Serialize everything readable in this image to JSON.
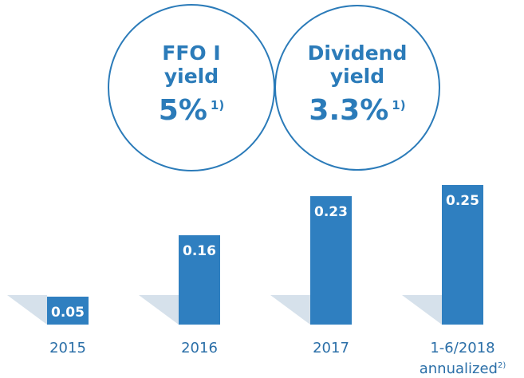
{
  "chart_data": {
    "type": "bar",
    "categories": [
      "2015",
      "2016",
      "2017",
      "1-6/2018 annualized"
    ],
    "category_footnotes": [
      null,
      null,
      null,
      "2)"
    ],
    "values": [
      0.05,
      0.16,
      0.23,
      0.25
    ],
    "color": "#2f7fc0"
  },
  "kpis": [
    {
      "label": "FFO I yield",
      "value": "5%",
      "note": "1)"
    },
    {
      "label": "Dividend yield",
      "value": "3.3%",
      "note": "1)"
    }
  ]
}
